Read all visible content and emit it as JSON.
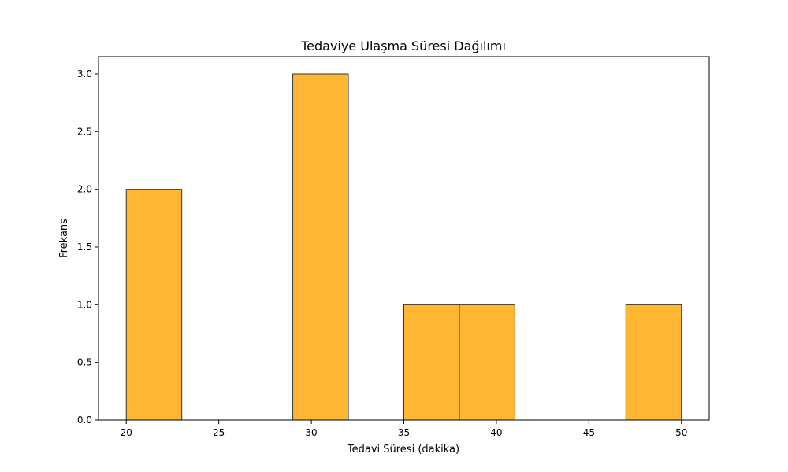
{
  "chart_data": {
    "type": "bar",
    "title": "Tedaviye Ulaşma Süresi Dağılımı",
    "xlabel": "Tedavi Süresi (dakika)",
    "ylabel": "Frekans",
    "xlim": [
      18.5,
      51.5
    ],
    "ylim": [
      0,
      3.15
    ],
    "xticks": [
      20,
      25,
      30,
      35,
      40,
      45,
      50
    ],
    "yticks": [
      0.0,
      0.5,
      1.0,
      1.5,
      2.0,
      2.5,
      3.0
    ],
    "xtick_labels": [
      "20",
      "25",
      "30",
      "35",
      "40",
      "45",
      "50"
    ],
    "ytick_labels": [
      "0.0",
      "0.5",
      "1.0",
      "1.5",
      "2.0",
      "2.5",
      "3.0"
    ],
    "bins": [
      {
        "start": 20,
        "end": 23,
        "count": 2
      },
      {
        "start": 23,
        "end": 26,
        "count": 0
      },
      {
        "start": 26,
        "end": 29,
        "count": 0
      },
      {
        "start": 29,
        "end": 32,
        "count": 3
      },
      {
        "start": 32,
        "end": 35,
        "count": 0
      },
      {
        "start": 35,
        "end": 38,
        "count": 1
      },
      {
        "start": 38,
        "end": 41,
        "count": 1
      },
      {
        "start": 41,
        "end": 44,
        "count": 0
      },
      {
        "start": 44,
        "end": 47,
        "count": 0
      },
      {
        "start": 47,
        "end": 50,
        "count": 1
      }
    ],
    "bar_color": "#ffb733",
    "edge_color": "#333333",
    "grid": false,
    "legend": "none"
  }
}
